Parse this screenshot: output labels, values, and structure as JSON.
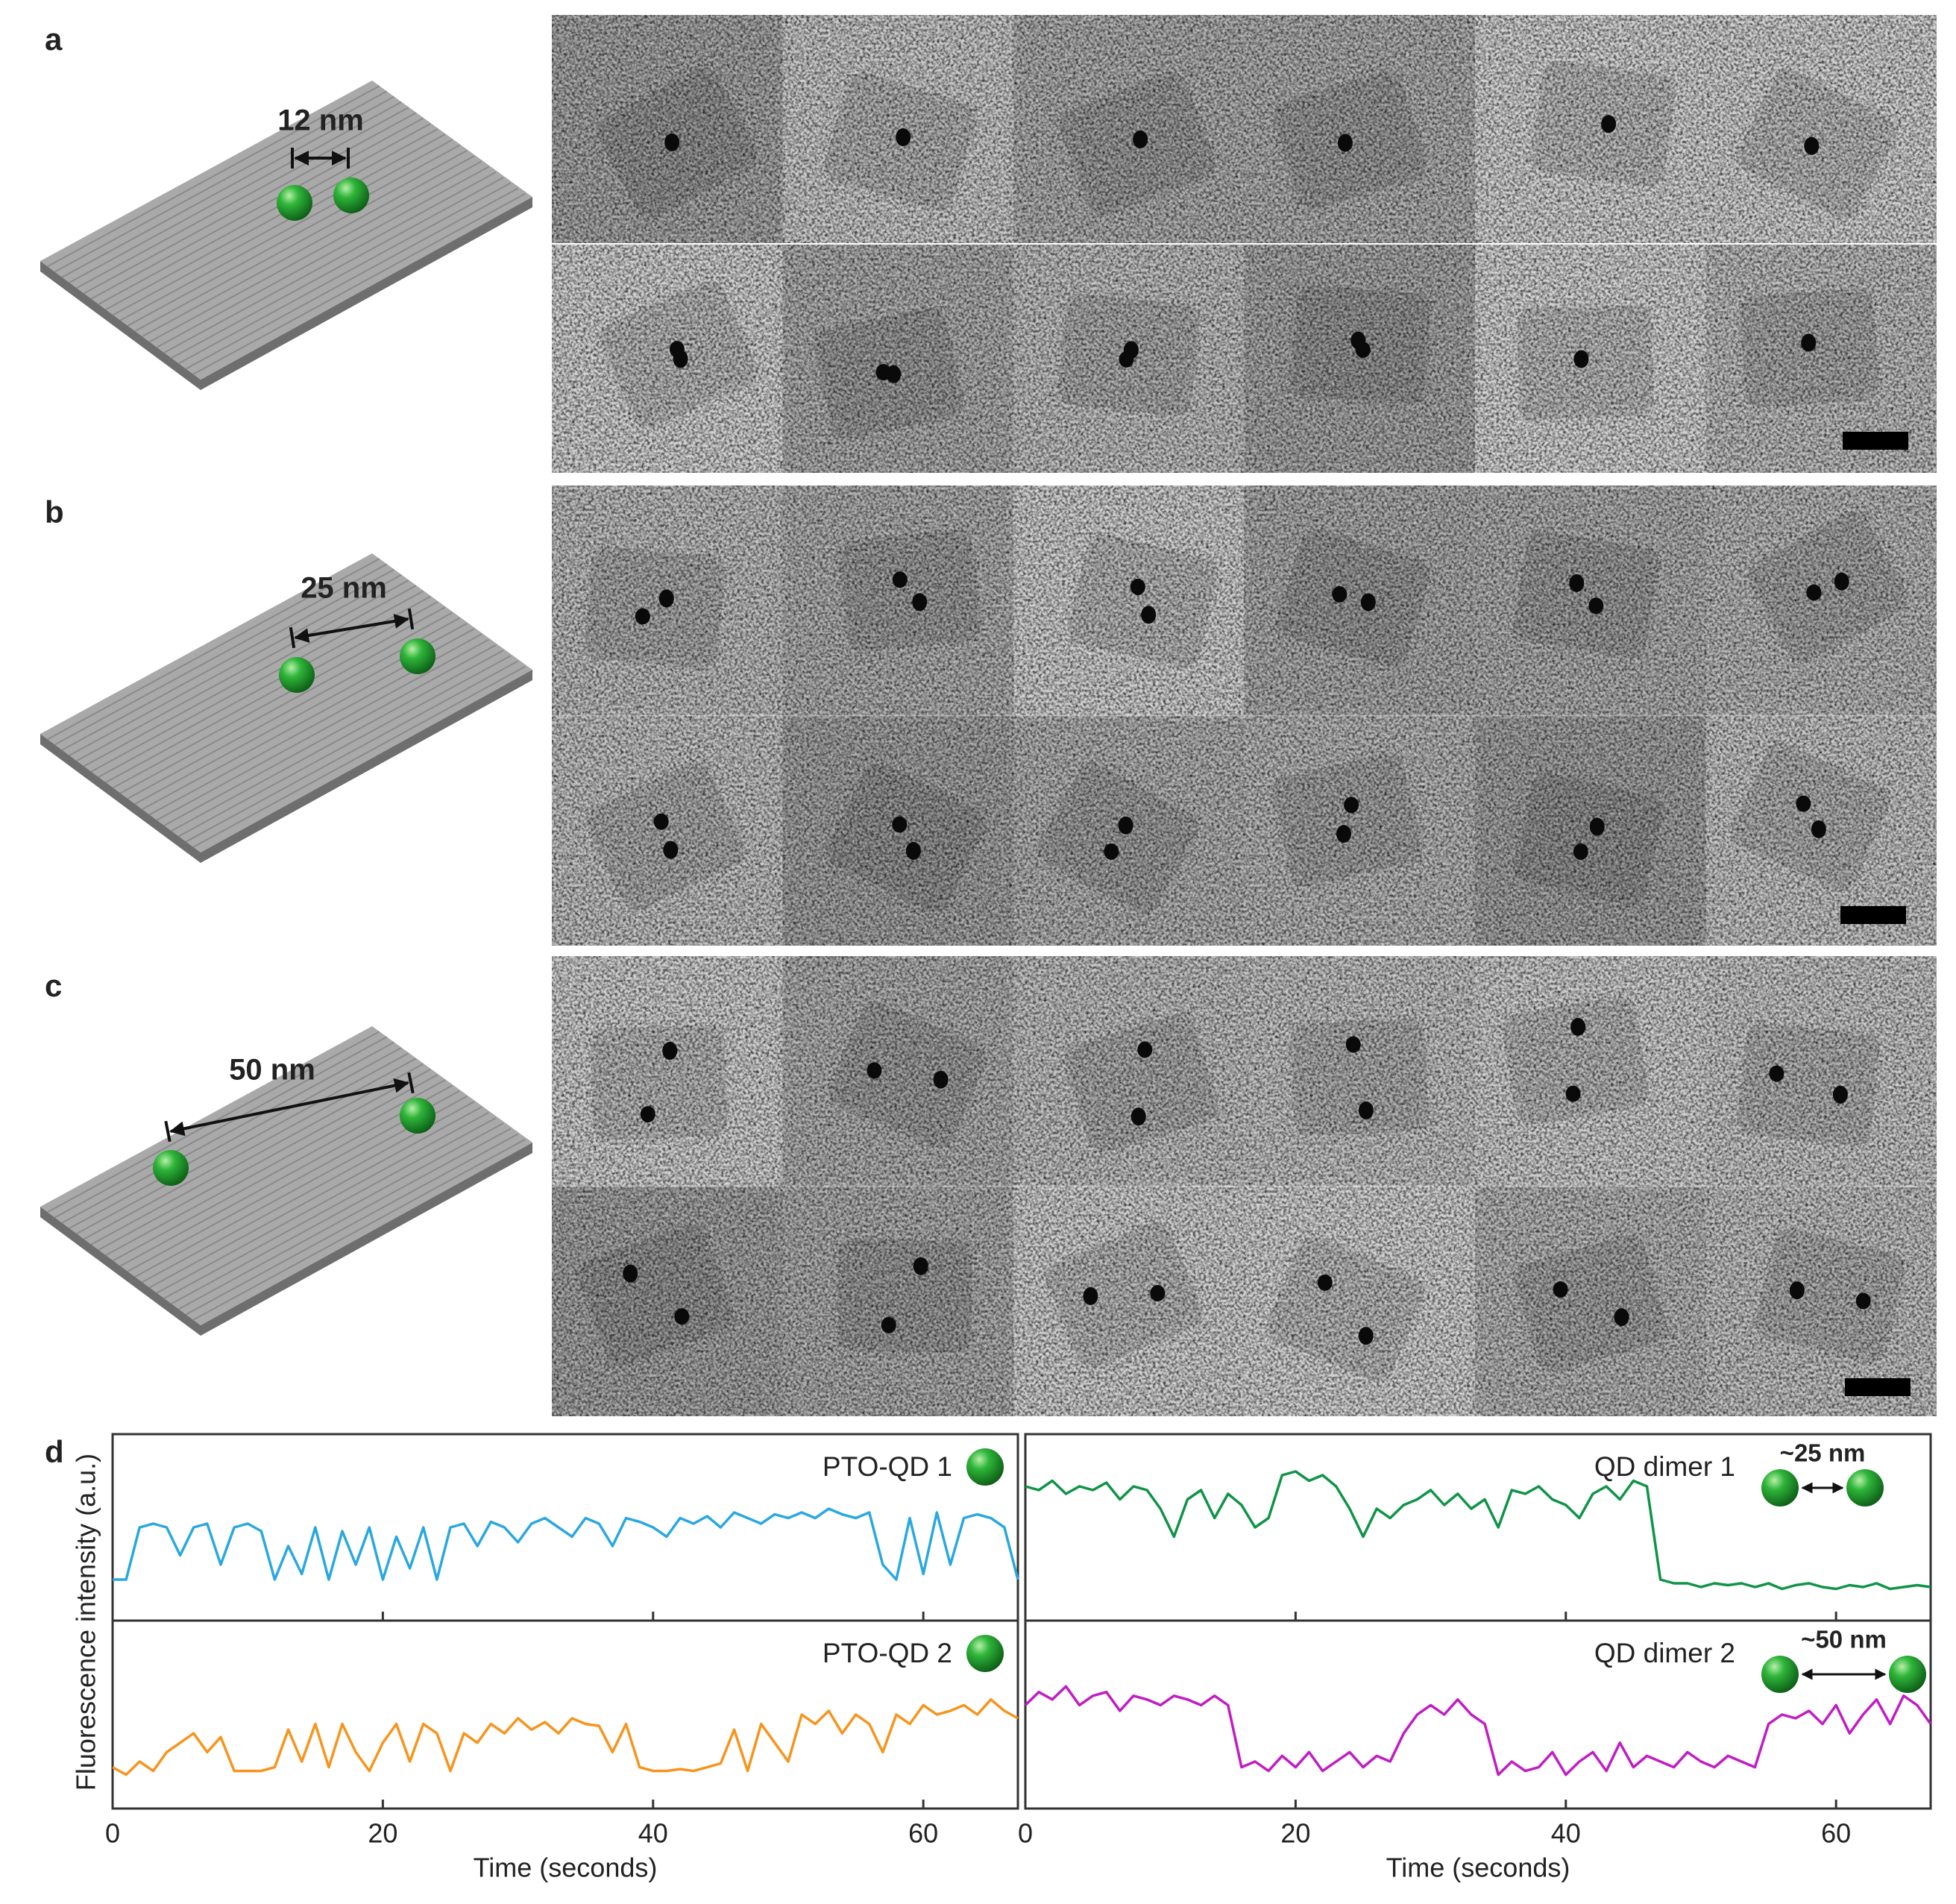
{
  "figure": {
    "panel_labels": [
      "a",
      "b",
      "c",
      "d"
    ],
    "distances": [
      "12 nm",
      "25 nm",
      "50 nm"
    ],
    "y_label": "Fluorescence intensity (a.u.)"
  },
  "chart_data": [
    {
      "type": "line",
      "title": "PTO-QD 1",
      "color": "#29a8e0",
      "xlim": [
        0,
        67
      ],
      "ylim": [
        0,
        1
      ],
      "xticks": [
        0,
        20,
        40,
        60
      ],
      "x": [
        0,
        1,
        2,
        3,
        4,
        5,
        6,
        7,
        8,
        9,
        10,
        11,
        12,
        13,
        14,
        15,
        16,
        17,
        18,
        19,
        20,
        21,
        22,
        23,
        24,
        25,
        26,
        27,
        28,
        29,
        30,
        31,
        32,
        33,
        34,
        35,
        36,
        37,
        38,
        39,
        40,
        41,
        42,
        43,
        44,
        45,
        46,
        47,
        48,
        49,
        50,
        51,
        52,
        53,
        54,
        55,
        56,
        57,
        58,
        59,
        60,
        61,
        62,
        63,
        64,
        65,
        66,
        67
      ],
      "values": [
        0.22,
        0.22,
        0.5,
        0.52,
        0.5,
        0.35,
        0.5,
        0.52,
        0.3,
        0.5,
        0.52,
        0.48,
        0.22,
        0.4,
        0.25,
        0.5,
        0.22,
        0.48,
        0.3,
        0.5,
        0.22,
        0.45,
        0.28,
        0.5,
        0.22,
        0.5,
        0.52,
        0.4,
        0.53,
        0.5,
        0.42,
        0.52,
        0.55,
        0.5,
        0.45,
        0.55,
        0.52,
        0.4,
        0.55,
        0.53,
        0.5,
        0.45,
        0.55,
        0.52,
        0.56,
        0.5,
        0.58,
        0.55,
        0.52,
        0.57,
        0.55,
        0.58,
        0.55,
        0.6,
        0.57,
        0.55,
        0.58,
        0.3,
        0.22,
        0.55,
        0.25,
        0.58,
        0.3,
        0.55,
        0.57,
        0.55,
        0.5,
        0.22
      ]
    },
    {
      "type": "line",
      "title": "QD dimer 1",
      "annotation": "~25 nm",
      "color": "#0f9447",
      "xlim": [
        0,
        67
      ],
      "ylim": [
        0,
        1
      ],
      "xticks": [
        0,
        20,
        40,
        60
      ],
      "x": [
        0,
        1,
        2,
        3,
        4,
        5,
        6,
        7,
        8,
        9,
        10,
        11,
        12,
        13,
        14,
        15,
        16,
        17,
        18,
        19,
        20,
        21,
        22,
        23,
        24,
        25,
        26,
        27,
        28,
        29,
        30,
        31,
        32,
        33,
        34,
        35,
        36,
        37,
        38,
        39,
        40,
        41,
        42,
        43,
        44,
        45,
        46,
        47,
        48,
        49,
        50,
        51,
        52,
        53,
        54,
        55,
        56,
        57,
        58,
        59,
        60,
        61,
        62,
        63,
        64,
        65,
        66,
        67
      ],
      "values": [
        0.72,
        0.7,
        0.75,
        0.68,
        0.72,
        0.7,
        0.74,
        0.65,
        0.72,
        0.7,
        0.6,
        0.45,
        0.65,
        0.7,
        0.55,
        0.68,
        0.62,
        0.5,
        0.55,
        0.78,
        0.8,
        0.75,
        0.78,
        0.72,
        0.6,
        0.45,
        0.6,
        0.55,
        0.62,
        0.65,
        0.7,
        0.62,
        0.68,
        0.6,
        0.65,
        0.5,
        0.7,
        0.68,
        0.72,
        0.65,
        0.62,
        0.55,
        0.68,
        0.72,
        0.65,
        0.75,
        0.72,
        0.22,
        0.2,
        0.2,
        0.18,
        0.2,
        0.19,
        0.2,
        0.18,
        0.2,
        0.17,
        0.19,
        0.2,
        0.18,
        0.17,
        0.19,
        0.18,
        0.2,
        0.17,
        0.18,
        0.19,
        0.18
      ]
    },
    {
      "type": "line",
      "title": "PTO-QD 2",
      "x_label": "Time (seconds)",
      "color": "#f7941d",
      "xlim": [
        0,
        67
      ],
      "ylim": [
        0,
        1
      ],
      "xticks": [
        0,
        20,
        40,
        60
      ],
      "x": [
        0,
        1,
        2,
        3,
        4,
        5,
        6,
        7,
        8,
        9,
        10,
        11,
        12,
        13,
        14,
        15,
        16,
        17,
        18,
        19,
        20,
        21,
        22,
        23,
        24,
        25,
        26,
        27,
        28,
        29,
        30,
        31,
        32,
        33,
        34,
        35,
        36,
        37,
        38,
        39,
        40,
        41,
        42,
        43,
        44,
        45,
        46,
        47,
        48,
        49,
        50,
        51,
        52,
        53,
        54,
        55,
        56,
        57,
        58,
        59,
        60,
        61,
        62,
        63,
        64,
        65,
        66,
        67
      ],
      "values": [
        0.22,
        0.18,
        0.25,
        0.2,
        0.3,
        0.35,
        0.4,
        0.3,
        0.38,
        0.2,
        0.2,
        0.2,
        0.22,
        0.42,
        0.25,
        0.45,
        0.22,
        0.45,
        0.3,
        0.2,
        0.35,
        0.45,
        0.25,
        0.45,
        0.4,
        0.2,
        0.4,
        0.35,
        0.45,
        0.4,
        0.48,
        0.42,
        0.46,
        0.4,
        0.48,
        0.45,
        0.44,
        0.3,
        0.45,
        0.22,
        0.2,
        0.2,
        0.21,
        0.2,
        0.22,
        0.24,
        0.42,
        0.2,
        0.45,
        0.35,
        0.25,
        0.5,
        0.45,
        0.52,
        0.4,
        0.5,
        0.45,
        0.3,
        0.5,
        0.45,
        0.55,
        0.5,
        0.52,
        0.55,
        0.5,
        0.58,
        0.52,
        0.48
      ]
    },
    {
      "type": "line",
      "title": "QD dimer 2",
      "annotation": "~50 nm",
      "x_label": "Time (seconds)",
      "color": "#c21cc4",
      "xlim": [
        0,
        67
      ],
      "ylim": [
        0,
        1
      ],
      "xticks": [
        0,
        20,
        40,
        60
      ],
      "x": [
        0,
        1,
        2,
        3,
        4,
        5,
        6,
        7,
        8,
        9,
        10,
        11,
        12,
        13,
        14,
        15,
        16,
        17,
        18,
        19,
        20,
        21,
        22,
        23,
        24,
        25,
        26,
        27,
        28,
        29,
        30,
        31,
        32,
        33,
        34,
        35,
        36,
        37,
        38,
        39,
        40,
        41,
        42,
        43,
        44,
        45,
        46,
        47,
        48,
        49,
        50,
        51,
        52,
        53,
        54,
        55,
        56,
        57,
        58,
        59,
        60,
        61,
        62,
        63,
        64,
        65,
        66,
        67
      ],
      "values": [
        0.55,
        0.62,
        0.58,
        0.65,
        0.55,
        0.6,
        0.62,
        0.52,
        0.6,
        0.58,
        0.55,
        0.6,
        0.58,
        0.55,
        0.6,
        0.55,
        0.22,
        0.25,
        0.2,
        0.28,
        0.22,
        0.3,
        0.2,
        0.25,
        0.3,
        0.22,
        0.28,
        0.25,
        0.4,
        0.5,
        0.55,
        0.5,
        0.58,
        0.5,
        0.45,
        0.18,
        0.25,
        0.2,
        0.22,
        0.3,
        0.18,
        0.25,
        0.3,
        0.2,
        0.35,
        0.22,
        0.28,
        0.25,
        0.22,
        0.3,
        0.25,
        0.22,
        0.28,
        0.25,
        0.22,
        0.45,
        0.5,
        0.48,
        0.52,
        0.45,
        0.55,
        0.4,
        0.5,
        0.58,
        0.45,
        0.6,
        0.55,
        0.45
      ]
    }
  ]
}
